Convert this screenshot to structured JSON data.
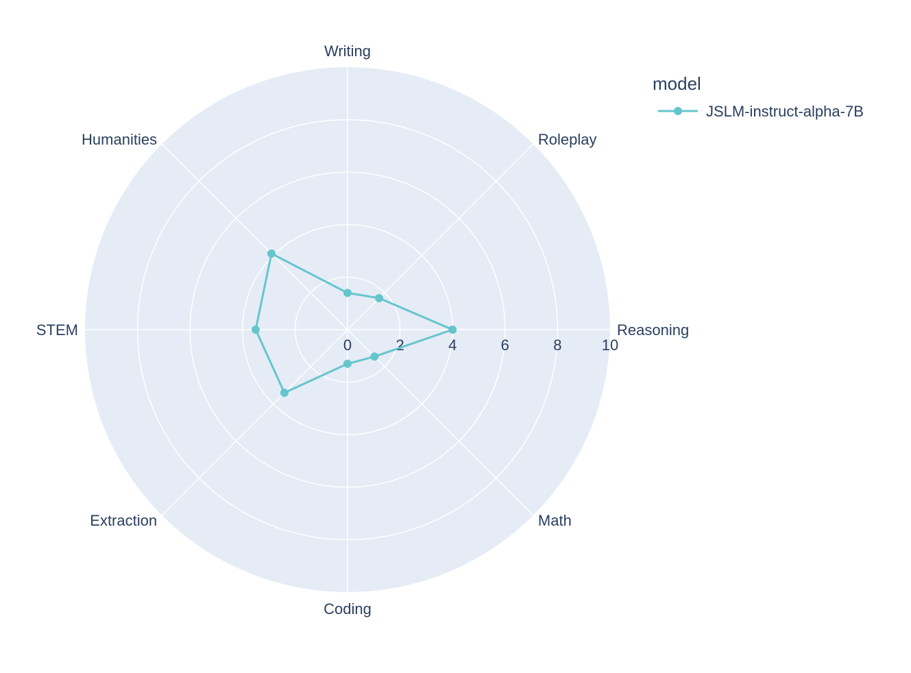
{
  "chart_data": {
    "type": "radar",
    "categories": [
      "Writing",
      "Roleplay",
      "Reasoning",
      "Math",
      "Coding",
      "Extraction",
      "STEM",
      "Humanities"
    ],
    "series": [
      {
        "name": "JSLM-instruct-alpha-7B",
        "values": [
          1.4,
          1.7,
          4.0,
          1.45,
          1.3,
          3.4,
          3.5,
          4.1
        ],
        "color": "#66c5cc"
      }
    ],
    "radial_range": [
      0,
      10
    ],
    "radial_ticks": [
      "0",
      "2",
      "4",
      "6",
      "8",
      "10"
    ],
    "legend_title": "model",
    "legend_position": "top-right",
    "grid": true,
    "colors": {
      "background": "#e5ecf6",
      "grid": "#ffffff",
      "text": "#2a3f5f"
    }
  }
}
